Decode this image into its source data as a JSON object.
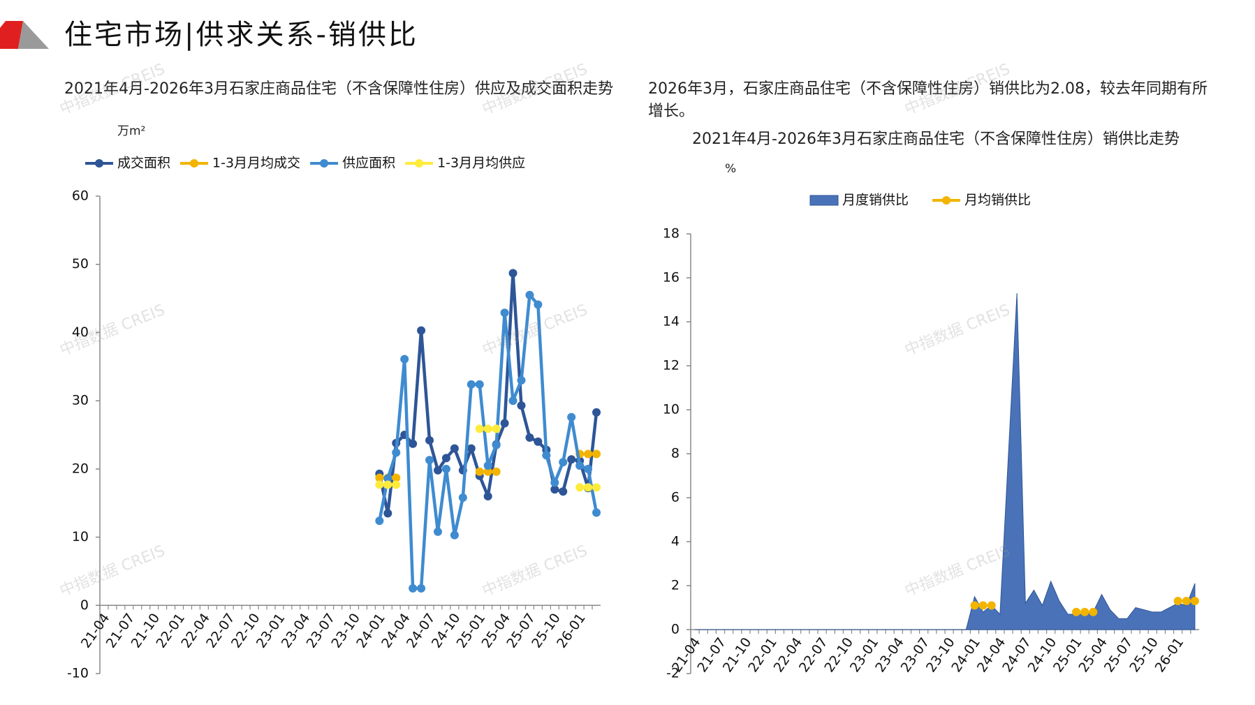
{
  "header": {
    "title": "住宅市场|供求关系-销供比"
  },
  "watermark": "中指数据 CREIS",
  "note": "2026年3月，石家庄商品住宅（不含保障性住房）销供比为2.08，较去年同期有所增长。",
  "chart_data": [
    {
      "type": "line",
      "title": "2021年4月-2026年3月石家庄商品住宅（不含保障性住房）供应及成交面积走势",
      "y_label": "万m²",
      "categories": [
        "21-04",
        null,
        null,
        "21-07",
        null,
        null,
        "21-10",
        null,
        null,
        "22-01",
        null,
        null,
        "22-04",
        null,
        null,
        "22-07",
        null,
        null,
        "22-10",
        null,
        null,
        "23-01",
        null,
        null,
        "23-04",
        null,
        null,
        "23-07",
        null,
        null,
        "23-10",
        null,
        null,
        "24-01",
        null,
        null,
        "24-04",
        null,
        null,
        "24-07",
        null,
        null,
        "24-10",
        null,
        null,
        "25-01",
        null,
        null,
        "25-04",
        null,
        null,
        "25-07",
        null,
        null,
        "25-10",
        null,
        null,
        "26-01",
        null,
        null
      ],
      "ylim": [
        -10,
        60
      ],
      "yticks": [
        -10,
        0,
        10,
        20,
        30,
        40,
        50,
        60
      ],
      "grid": false,
      "series": [
        {
          "name": "成交面积",
          "color": "#2e5597",
          "values": [
            null,
            null,
            null,
            null,
            null,
            null,
            null,
            null,
            null,
            null,
            null,
            null,
            null,
            null,
            null,
            null,
            null,
            null,
            null,
            null,
            null,
            null,
            null,
            null,
            null,
            null,
            null,
            null,
            null,
            null,
            null,
            null,
            null,
            19.3,
            13.5,
            23.8,
            25,
            23.7,
            40.3,
            24.2,
            19.8,
            21.6,
            23,
            19.8,
            23,
            19,
            16,
            23.6,
            26.7,
            48.7,
            29.3,
            24.6,
            24,
            22.8,
            17,
            16.7,
            21.4,
            21.2,
            17.2,
            28.3
          ]
        },
        {
          "name": "1-3月月均成交",
          "color": "#f2b400",
          "values": [
            null,
            null,
            null,
            null,
            null,
            null,
            null,
            null,
            null,
            null,
            null,
            null,
            null,
            null,
            null,
            null,
            null,
            null,
            null,
            null,
            null,
            null,
            null,
            null,
            null,
            null,
            null,
            null,
            null,
            null,
            null,
            null,
            null,
            18.7,
            18.7,
            18.7,
            null,
            null,
            null,
            null,
            null,
            null,
            null,
            null,
            null,
            19.6,
            19.6,
            19.6,
            null,
            null,
            null,
            null,
            null,
            null,
            null,
            null,
            null,
            22.2,
            22.2,
            22.2
          ]
        },
        {
          "name": "供应面积",
          "color": "#3f8bd0",
          "values": [
            null,
            null,
            null,
            null,
            null,
            null,
            null,
            null,
            null,
            null,
            null,
            null,
            null,
            null,
            null,
            null,
            null,
            null,
            null,
            null,
            null,
            null,
            null,
            null,
            null,
            null,
            null,
            null,
            null,
            null,
            null,
            null,
            null,
            12.4,
            18.6,
            22.4,
            36.1,
            2.5,
            2.5,
            21.3,
            10.8,
            20,
            10.3,
            15.8,
            32.4,
            32.4,
            20.5,
            23.5,
            42.9,
            30,
            33,
            45.5,
            44.1,
            22,
            18,
            21,
            27.6,
            20.5,
            20,
            13.6
          ]
        },
        {
          "name": "1-3月月均供应",
          "color": "#ffeb3b",
          "values": [
            null,
            null,
            null,
            null,
            null,
            null,
            null,
            null,
            null,
            null,
            null,
            null,
            null,
            null,
            null,
            null,
            null,
            null,
            null,
            null,
            null,
            null,
            null,
            null,
            null,
            null,
            null,
            null,
            null,
            null,
            null,
            null,
            null,
            17.7,
            17.7,
            17.7,
            null,
            null,
            null,
            null,
            null,
            null,
            null,
            null,
            null,
            25.9,
            25.9,
            25.9,
            null,
            null,
            null,
            null,
            null,
            null,
            null,
            null,
            null,
            17.3,
            17.3,
            17.3
          ]
        }
      ]
    },
    {
      "type": "area",
      "title": "2021年4月-2026年3月石家庄商品住宅（不含保障性住房）销供比走势",
      "y_label": "%",
      "categories": [
        "21-04",
        null,
        null,
        "21-07",
        null,
        null,
        "21-10",
        null,
        null,
        "22-01",
        null,
        null,
        "22-04",
        null,
        null,
        "22-07",
        null,
        null,
        "22-10",
        null,
        null,
        "23-01",
        null,
        null,
        "23-04",
        null,
        null,
        "23-07",
        null,
        null,
        "23-10",
        null,
        null,
        "24-01",
        null,
        null,
        "24-04",
        null,
        null,
        "24-07",
        null,
        null,
        "24-10",
        null,
        null,
        "25-01",
        null,
        null,
        "25-04",
        null,
        null,
        "25-07",
        null,
        null,
        "25-10",
        null,
        null,
        "26-01",
        null,
        null
      ],
      "ylim": [
        -2,
        18
      ],
      "yticks": [
        -2,
        0,
        2,
        4,
        6,
        8,
        10,
        12,
        14,
        16,
        18
      ],
      "grid": false,
      "series": [
        {
          "name": "月度销供比",
          "color": "#4a72b8",
          "values": [
            0,
            0,
            0,
            0,
            0,
            0,
            0,
            0,
            0,
            0,
            0,
            0,
            0,
            0,
            0,
            0,
            0,
            0,
            0,
            0,
            0,
            0,
            0,
            0,
            0,
            0,
            0,
            0,
            0,
            0,
            0,
            0,
            0,
            1.5,
            0.8,
            1.1,
            0.7,
            8,
            15.3,
            1.2,
            1.8,
            1.1,
            2.2,
            1.3,
            0.7,
            0.7,
            0.7,
            0.8,
            1.6,
            0.9,
            0.5,
            0.5,
            1,
            0.9,
            0.8,
            0.8,
            1,
            1.2,
            1.1,
            2.1
          ]
        },
        {
          "name": "月均销供比",
          "type": "line",
          "color": "#f2b400",
          "values": [
            null,
            null,
            null,
            null,
            null,
            null,
            null,
            null,
            null,
            null,
            null,
            null,
            null,
            null,
            null,
            null,
            null,
            null,
            null,
            null,
            null,
            null,
            null,
            null,
            null,
            null,
            null,
            null,
            null,
            null,
            null,
            null,
            null,
            1.1,
            1.1,
            1.1,
            null,
            null,
            null,
            null,
            null,
            null,
            null,
            null,
            null,
            0.8,
            0.8,
            0.8,
            null,
            null,
            null,
            null,
            null,
            null,
            null,
            null,
            null,
            1.3,
            1.3,
            1.3
          ]
        }
      ]
    }
  ]
}
